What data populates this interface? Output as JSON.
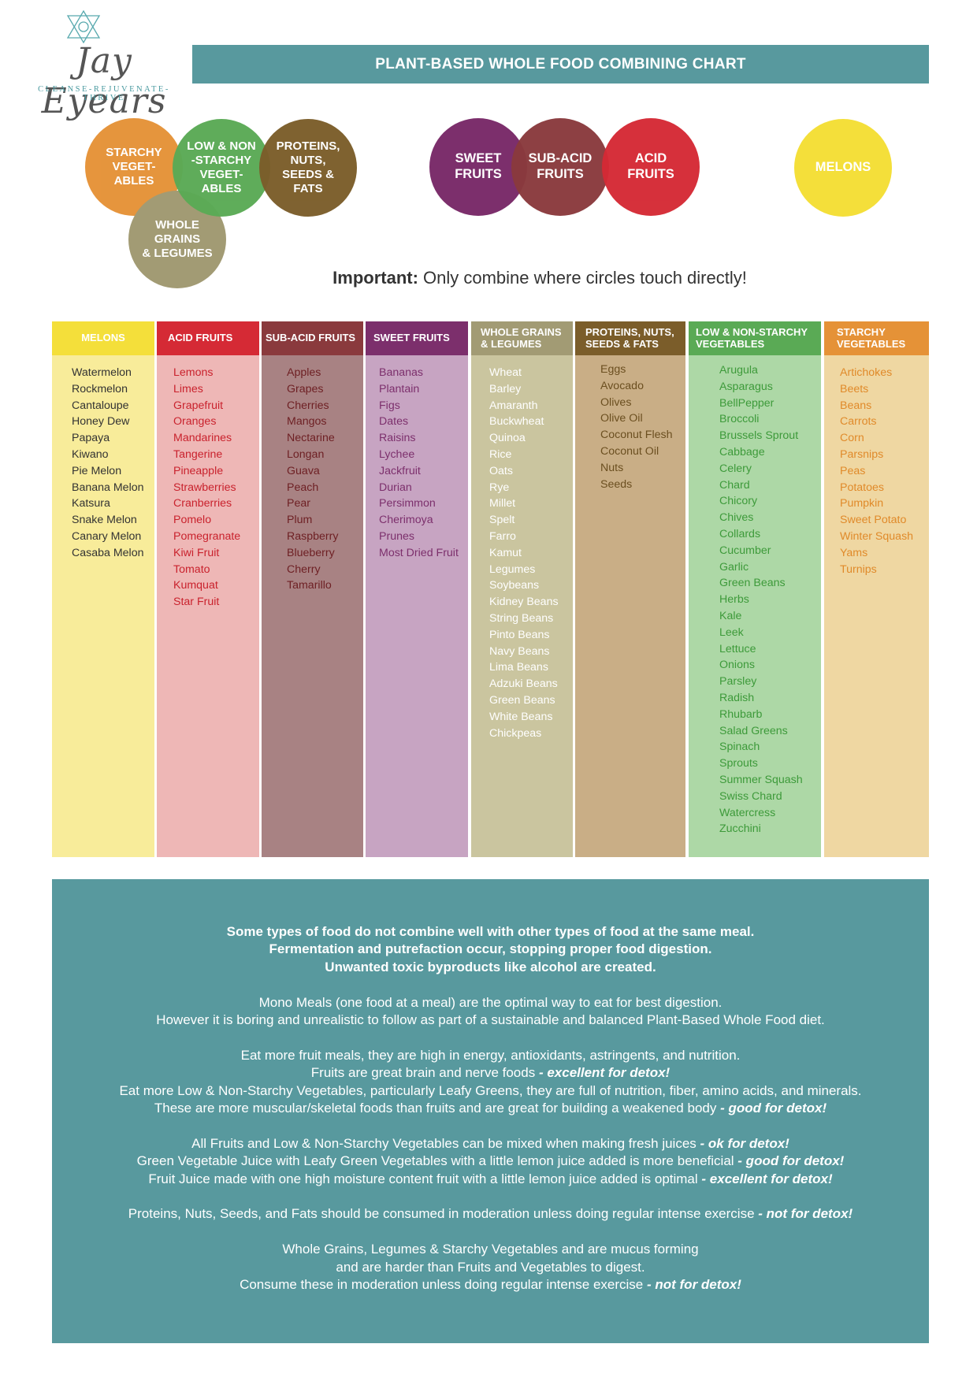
{
  "logo": {
    "name": "Jay Eyears",
    "tagline": "CLEANSE-REJUVENATE-THRIVE"
  },
  "title": "PLANT-BASED WHOLE FOOD COMBINING CHART",
  "circles": {
    "starchy": "STARCHY\nVEGET-\nABLES",
    "low_non": "LOW & NON\n-STARCHY\nVEGET-\nABLES",
    "proteins": "PROTEINS,\nNUTS,\nSEEDS &\nFATS",
    "grains": "WHOLE\nGRAINS\n& LEGUMES",
    "sweet": "SWEET\nFRUITS",
    "subacid": "SUB-ACID\nFRUITS",
    "acid": "ACID\nFRUITS",
    "melons": "MELONS"
  },
  "important": {
    "label": "Important:",
    "text": " Only combine where circles touch directly!"
  },
  "colors": {
    "teal": "#58999e",
    "melons": "#f4df3a",
    "acid": "#d52a35",
    "subacid": "#8a3a3d",
    "sweet": "#7c2f6c",
    "grains": "#a29b74",
    "proteins": "#7b5d2a",
    "low_non": "#5aaa55",
    "starchy": "#e59237"
  },
  "columns": [
    {
      "header": "MELONS",
      "items": [
        "Watermelon",
        "Rockmelon",
        "Cantaloupe",
        "Honey Dew",
        "Papaya",
        "Kiwano",
        "Pie Melon",
        "Banana Melon",
        "Katsura",
        "Snake Melon",
        "Canary Melon",
        "Casaba Melon"
      ]
    },
    {
      "header": "ACID FRUITS",
      "items": [
        "Lemons",
        "Limes",
        "Grapefruit",
        "Oranges",
        "Mandarines",
        "Tangerine",
        "Pineapple",
        "Strawberries",
        "Cranberries",
        "Pomelo",
        "Pomegranate",
        "Kiwi Fruit",
        "Tomato",
        "Kumquat",
        "Star Fruit"
      ]
    },
    {
      "header": "SUB-ACID FRUITS",
      "items": [
        "Apples",
        "Grapes",
        "Cherries",
        "Mangos",
        "Nectarine",
        "Longan",
        "Guava",
        "Peach",
        "Pear",
        "Plum",
        "Raspberry",
        "Blueberry",
        "Cherry",
        "Tamarillo"
      ]
    },
    {
      "header": "SWEET FRUITS",
      "items": [
        "Bananas",
        "Plantain",
        "Figs",
        "Dates",
        "Raisins",
        "Lychee",
        "Jackfruit",
        "Durian",
        "Persimmon",
        "Cherimoya",
        "Prunes",
        "Most Dried Fruit"
      ]
    },
    {
      "header": "WHOLE GRAINS\n& LEGUMES",
      "items": [
        "Wheat",
        "Barley",
        "Amaranth",
        "Buckwheat",
        "Quinoa",
        "Rice",
        "Oats",
        "Rye",
        "Millet",
        "Spelt",
        "Farro",
        "Kamut",
        "Legumes",
        "Soybeans",
        "Kidney Beans",
        "String Beans",
        "Pinto Beans",
        "Navy Beans",
        "Lima Beans",
        "Adzuki Beans",
        "Green Beans",
        "White Beans",
        "Chickpeas"
      ]
    },
    {
      "header": "PROTEINS, NUTS,\nSEEDS & FATS",
      "items": [
        "Eggs",
        "Avocado",
        "Olives",
        "Olive Oil",
        "Coconut Flesh",
        "Coconut Oil",
        "Nuts",
        "Seeds"
      ]
    },
    {
      "header": "LOW & NON-STARCHY\nVEGETABLES",
      "items": [
        "Arugula",
        "Asparagus",
        "BellPepper",
        "Broccoli",
        "Brussels Sprout",
        "Cabbage",
        "Celery",
        "Chard",
        "Chicory",
        "Chives",
        "Collards",
        "Cucumber",
        "Garlic",
        "Green Beans",
        "Herbs",
        "Kale",
        "Leek",
        "Lettuce",
        "Onions",
        "Parsley",
        "Radish",
        "Rhubarb",
        "Salad Greens",
        "Spinach",
        "Sprouts",
        "Summer Squash",
        "Swiss Chard",
        "Watercress",
        "Zucchini"
      ]
    },
    {
      "header": "STARCHY\nVEGETABLES",
      "items": [
        "Artichokes",
        "Beets",
        "Beans",
        "Carrots",
        "Corn",
        "Parsnips",
        "Peas",
        "Potatoes",
        "Pumpkin",
        "Sweet Potato",
        "Winter Squash",
        "Yams",
        "Turnips"
      ]
    }
  ],
  "info": {
    "p1": [
      "Some types of food do not combine well with other types of food at the same meal.",
      "Fermentation and putrefaction occur, stopping proper food digestion.",
      "Unwanted toxic byproducts like alcohol are created."
    ],
    "p2": [
      "Mono Meals (one food at a meal) are the optimal way to eat for best digestion.",
      "However it is boring and unrealistic to follow as part of a sustainable and balanced Plant-Based Whole Food diet."
    ],
    "p3": [
      {
        "t": "Eat more fruit meals, they are high in energy, antioxidants, astringents, and nutrition.",
        "e": ""
      },
      {
        "t": "Fruits are great brain and nerve foods ",
        "e": "- excellent for detox!"
      },
      {
        "t": "Eat more Low & Non-Starchy Vegetables, particularly Leafy Greens, they are full of nutrition, fiber, amino acids, and minerals.",
        "e": ""
      },
      {
        "t": "These are more muscular/skeletal foods than fruits and are great for building a weakened body ",
        "e": "- good for detox!"
      }
    ],
    "p4": [
      {
        "t": "All Fruits and Low & Non-Starchy Vegetables can be mixed when making fresh juices ",
        "e": "- ok for detox!"
      },
      {
        "t": "Green Vegetable Juice with Leafy Green Vegetables with a little lemon juice added is more beneficial ",
        "e": "- good for detox!"
      },
      {
        "t": "Fruit Juice made with one high moisture content fruit with a little lemon juice added is optimal ",
        "e": "- excellent for detox!"
      }
    ],
    "p5": [
      {
        "t": "Proteins, Nuts, Seeds, and Fats should be consumed in moderation unless doing regular intense exercise ",
        "e": "- not for detox!"
      }
    ],
    "p6": [
      {
        "t": "Whole Grains, Legumes & Starchy Vegetables and are mucus forming",
        "e": ""
      },
      {
        "t": "and are harder than Fruits and Vegetables to digest.",
        "e": ""
      },
      {
        "t": "Consume these in moderation unless doing regular intense exercise ",
        "e": "- not for detox!"
      }
    ]
  }
}
